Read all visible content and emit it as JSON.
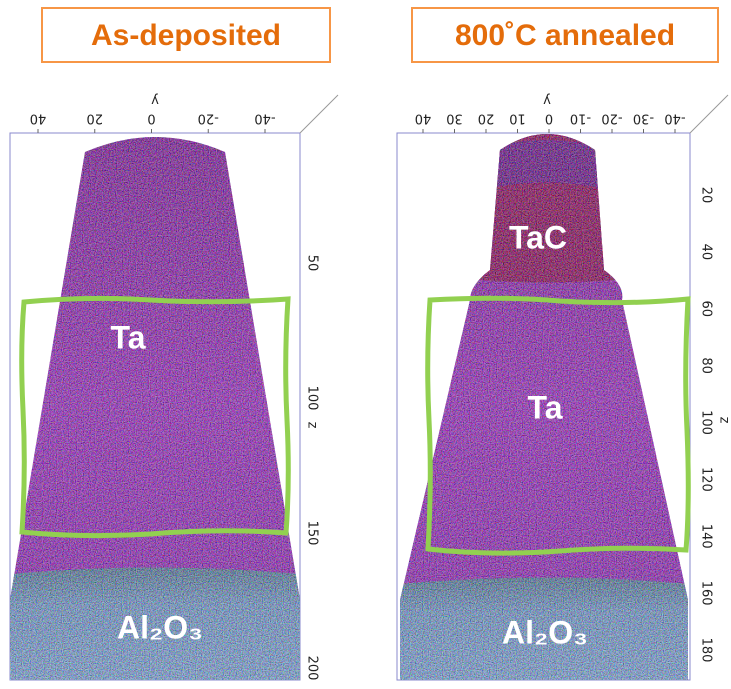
{
  "panels": [
    {
      "title": "As-deposited",
      "axis_top_label": "y",
      "axis_right_label": "z",
      "top_ticks": [
        40,
        20,
        0,
        -20,
        -40
      ],
      "right_ticks": [
        50,
        100,
        150,
        200
      ],
      "labels": [
        "Ta",
        "Al₂O₃"
      ]
    },
    {
      "title": "800˚C annealed",
      "axis_top_label": "y",
      "axis_right_label": "z",
      "top_ticks": [
        40,
        30,
        20,
        10,
        0,
        -10,
        -20,
        -30,
        -40
      ],
      "right_ticks": [
        20,
        40,
        60,
        80,
        100,
        120,
        140,
        160,
        180
      ],
      "labels": [
        "TaC",
        "Ta",
        "Al₂O₃"
      ]
    }
  ]
}
